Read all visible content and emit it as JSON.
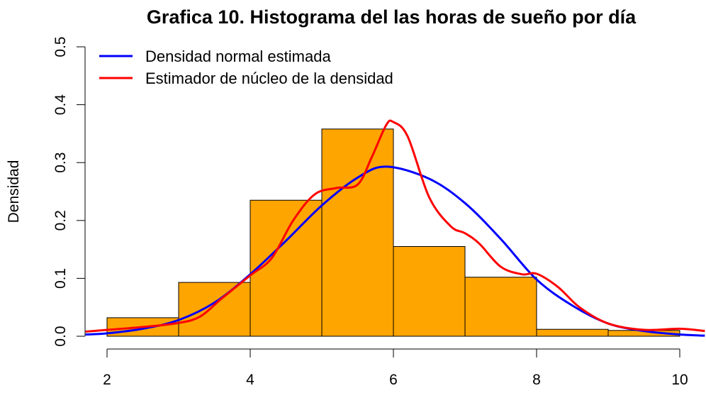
{
  "chart_data": {
    "type": "bar",
    "title": "Grafica 10. Histograma del las horas de sueño por día",
    "xlabel": "",
    "ylabel": "Densidad",
    "xlim": [
      2,
      10
    ],
    "ylim": [
      0,
      0.5
    ],
    "x_ticks": [
      "2",
      "4",
      "6",
      "8",
      "10"
    ],
    "y_ticks": [
      "0.0",
      "0.1",
      "0.2",
      "0.3",
      "0.4",
      "0.5"
    ],
    "histogram": {
      "bins": [
        [
          2,
          3
        ],
        [
          3,
          4
        ],
        [
          4,
          5
        ],
        [
          5,
          6
        ],
        [
          6,
          7
        ],
        [
          7,
          8
        ],
        [
          8,
          9
        ],
        [
          9,
          10
        ]
      ],
      "density": [
        0.032,
        0.093,
        0.235,
        0.358,
        0.155,
        0.102,
        0.012,
        0.01
      ],
      "fill_color": "#FFA500",
      "border_color": "#000000"
    },
    "series": [
      {
        "name": "Densidad normal estimada",
        "color": "#0000FF",
        "type": "line",
        "x": [
          1.7,
          2.0,
          2.5,
          3.0,
          3.5,
          4.0,
          4.5,
          5.0,
          5.5,
          5.9,
          6.5,
          7.0,
          7.5,
          8.0,
          8.5,
          9.0,
          9.5,
          10.0,
          10.35
        ],
        "y": [
          0.003,
          0.005,
          0.013,
          0.028,
          0.058,
          0.107,
          0.165,
          0.226,
          0.274,
          0.293,
          0.272,
          0.23,
          0.168,
          0.098,
          0.053,
          0.022,
          0.009,
          0.003,
          0.001
        ]
      },
      {
        "name": "Estimador de núcleo de la densidad",
        "color": "#FF0000",
        "type": "line",
        "x": [
          1.7,
          2.0,
          2.5,
          3.0,
          3.3,
          3.6,
          4.0,
          4.3,
          4.6,
          4.9,
          5.2,
          5.5,
          5.7,
          5.9,
          6.0,
          6.2,
          6.5,
          6.8,
          7.0,
          7.2,
          7.5,
          7.8,
          8.0,
          8.3,
          8.6,
          9.0,
          9.5,
          10.0,
          10.35
        ],
        "y": [
          0.008,
          0.011,
          0.016,
          0.023,
          0.034,
          0.065,
          0.105,
          0.135,
          0.2,
          0.245,
          0.256,
          0.262,
          0.31,
          0.365,
          0.37,
          0.345,
          0.24,
          0.19,
          0.178,
          0.16,
          0.12,
          0.107,
          0.108,
          0.085,
          0.05,
          0.022,
          0.011,
          0.013,
          0.009
        ]
      }
    ],
    "legend": {
      "position": "top-left",
      "entries": [
        {
          "label": "Densidad normal estimada",
          "color": "#0000FF"
        },
        {
          "label": "Estimador de núcleo de la densidad",
          "color": "#FF0000"
        }
      ]
    },
    "grid": false
  }
}
